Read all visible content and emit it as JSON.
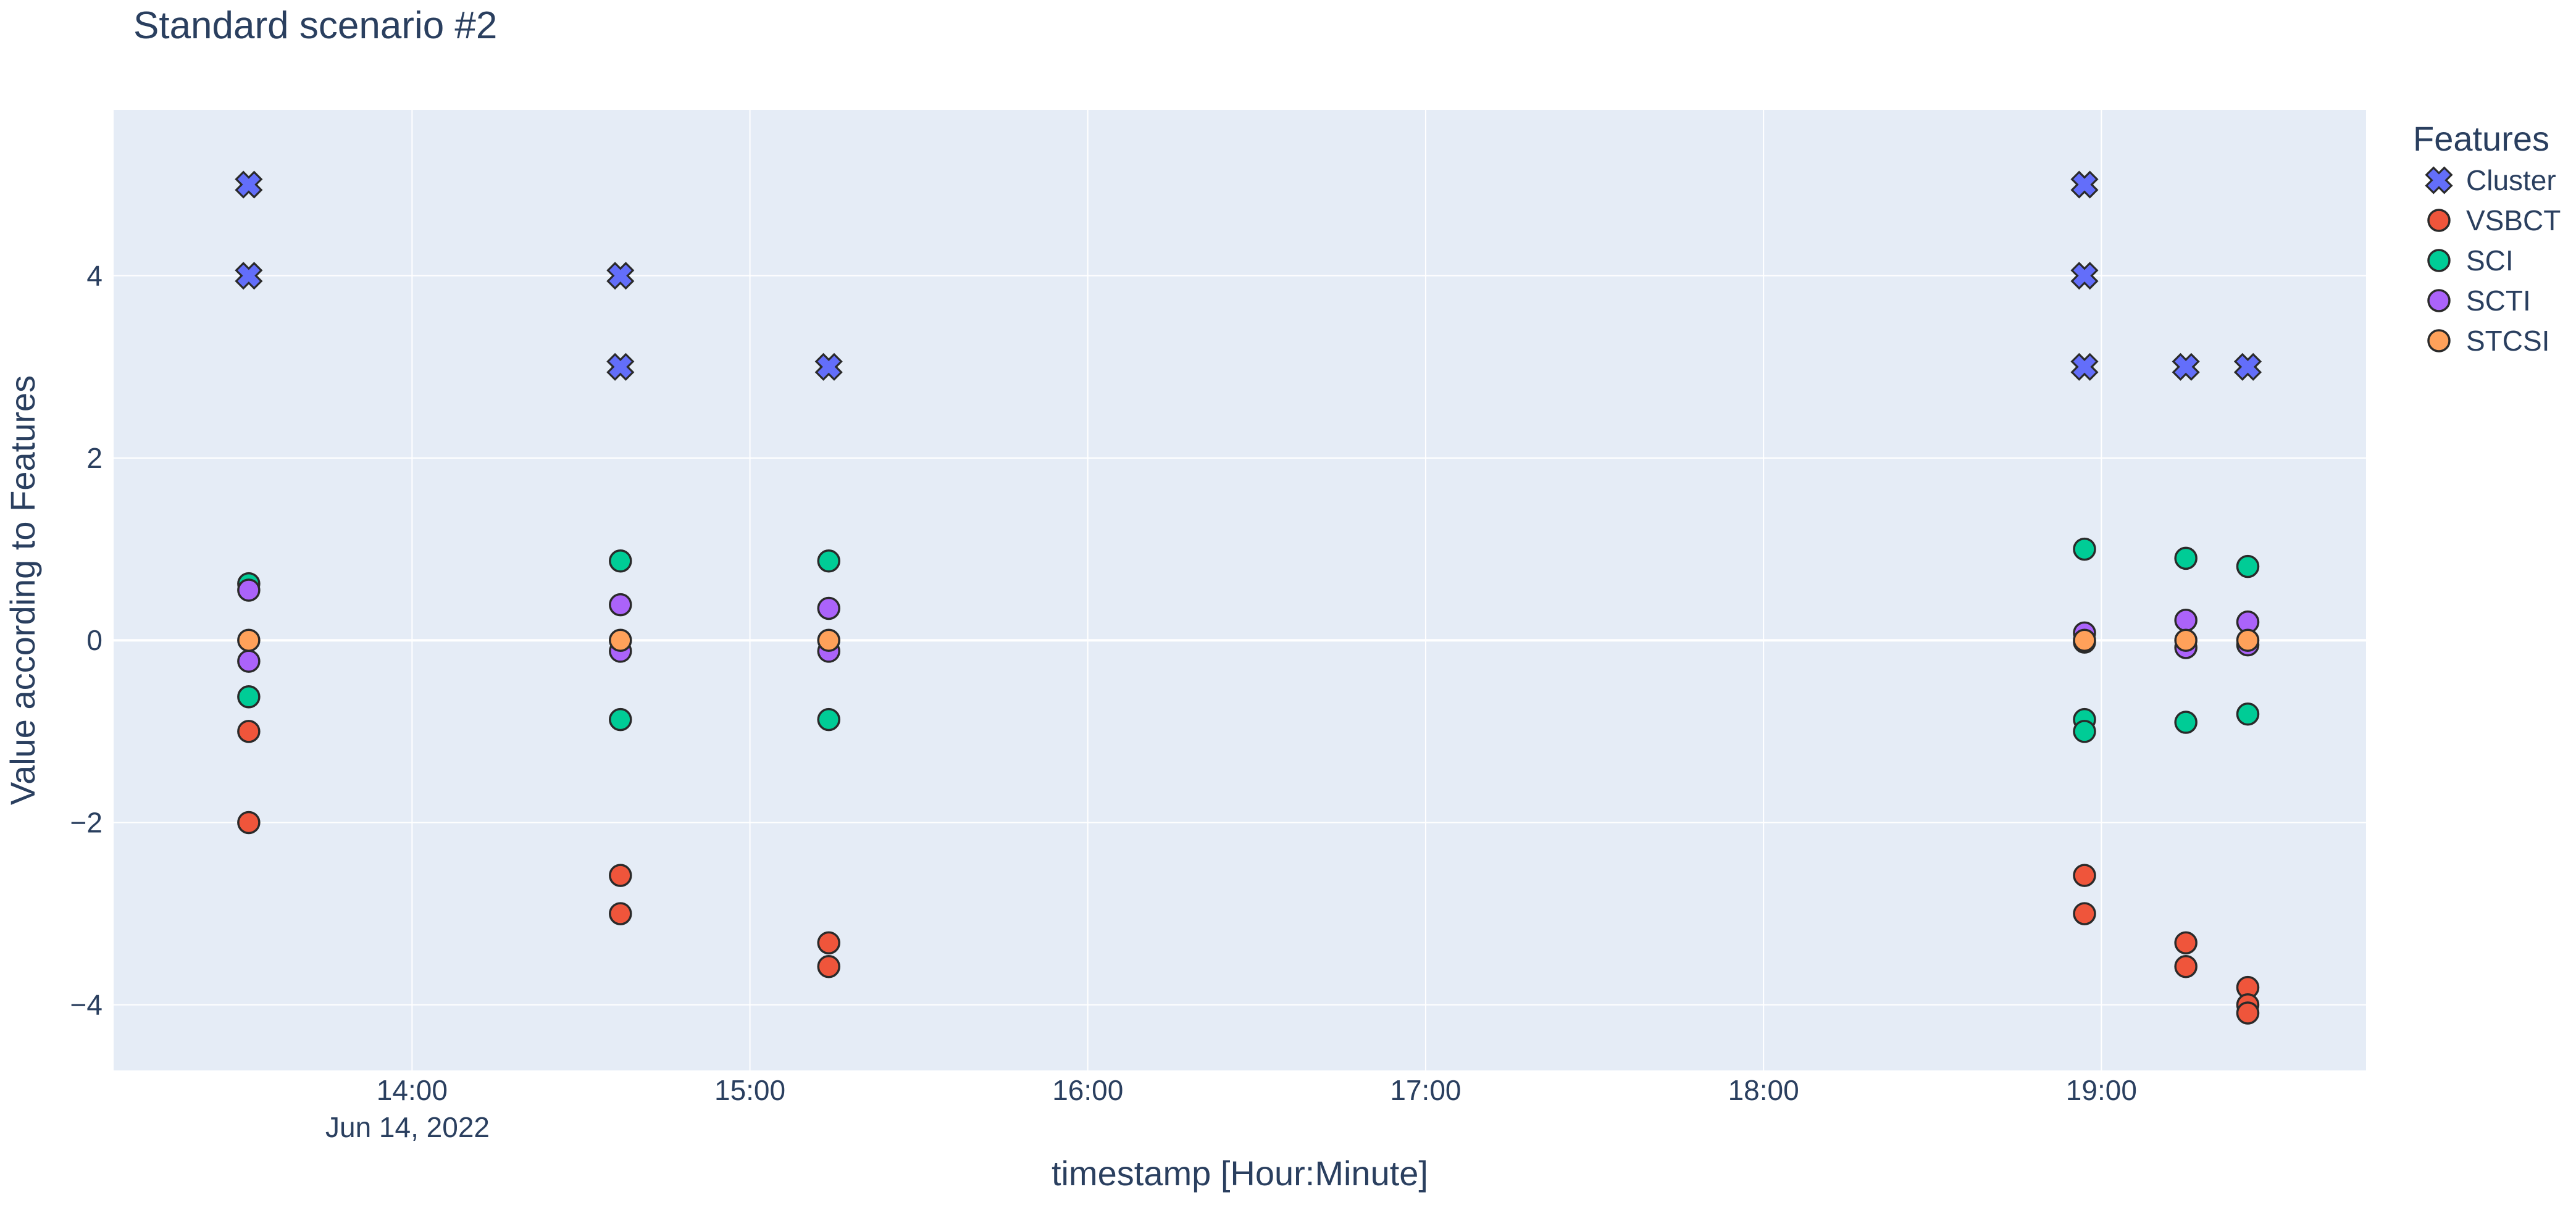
{
  "chart_data": {
    "type": "scatter",
    "title": "Standard scenario #2",
    "xlabel": "timestamp [Hour:Minute]",
    "ylabel": "Value according to Features",
    "x_axis_type": "time",
    "x_range": [
      "13:07",
      "19:47"
    ],
    "x_ticks": [
      "14:00",
      "15:00",
      "16:00",
      "17:00",
      "18:00",
      "19:00"
    ],
    "x_tick_date_label": "Jun 14, 2022",
    "y_range": [
      -4.72,
      5.82
    ],
    "y_ticks": [
      -4,
      -2,
      0,
      2,
      4
    ],
    "y_tick_labels": [
      "−4",
      "−2",
      "0",
      "2",
      "4"
    ],
    "grid": true,
    "legend_title": "Features",
    "legend_position": "top-right",
    "series": [
      {
        "name": "Cluster",
        "marker": "x",
        "color": "#636efa",
        "points": [
          {
            "x": "13:31",
            "y": 5
          },
          {
            "x": "13:31",
            "y": 4
          },
          {
            "x": "14:37",
            "y": 4
          },
          {
            "x": "14:37",
            "y": 3
          },
          {
            "x": "15:14",
            "y": 3
          },
          {
            "x": "18:57",
            "y": 5
          },
          {
            "x": "18:57",
            "y": 4
          },
          {
            "x": "18:57",
            "y": 3
          },
          {
            "x": "19:15",
            "y": 3
          },
          {
            "x": "19:26",
            "y": 3
          }
        ]
      },
      {
        "name": "VSBCT",
        "marker": "circle",
        "color": "#ef553b",
        "points": [
          {
            "x": "13:31",
            "y": -1
          },
          {
            "x": "13:31",
            "y": -2
          },
          {
            "x": "14:37",
            "y": -2.58
          },
          {
            "x": "14:37",
            "y": -3
          },
          {
            "x": "15:14",
            "y": -3.32
          },
          {
            "x": "15:14",
            "y": -3.58
          },
          {
            "x": "18:57",
            "y": -2.58
          },
          {
            "x": "18:57",
            "y": -3
          },
          {
            "x": "19:15",
            "y": -3.32
          },
          {
            "x": "19:15",
            "y": -3.58
          },
          {
            "x": "19:26",
            "y": -3.81
          },
          {
            "x": "19:26",
            "y": -4
          },
          {
            "x": "19:26",
            "y": -4.09
          }
        ]
      },
      {
        "name": "SCI",
        "marker": "circle",
        "color": "#00cc96",
        "points": [
          {
            "x": "13:31",
            "y": 0.62
          },
          {
            "x": "13:31",
            "y": -0.62
          },
          {
            "x": "14:37",
            "y": 0.87
          },
          {
            "x": "14:37",
            "y": -0.87
          },
          {
            "x": "15:14",
            "y": 0.87
          },
          {
            "x": "15:14",
            "y": -0.87
          },
          {
            "x": "18:57",
            "y": 1.0
          },
          {
            "x": "18:57",
            "y": -0.87
          },
          {
            "x": "18:57",
            "y": -1.0
          },
          {
            "x": "19:15",
            "y": 0.9
          },
          {
            "x": "19:15",
            "y": -0.9
          },
          {
            "x": "19:26",
            "y": 0.81
          },
          {
            "x": "19:26",
            "y": -0.81
          }
        ]
      },
      {
        "name": "SCTI",
        "marker": "circle",
        "color": "#ab63fa",
        "points": [
          {
            "x": "13:31",
            "y": 0.55
          },
          {
            "x": "13:31",
            "y": -0.23
          },
          {
            "x": "14:37",
            "y": 0.39
          },
          {
            "x": "14:37",
            "y": -0.12
          },
          {
            "x": "15:14",
            "y": 0.35
          },
          {
            "x": "15:14",
            "y": -0.12
          },
          {
            "x": "18:57",
            "y": 0.08
          },
          {
            "x": "18:57",
            "y": -0.02
          },
          {
            "x": "19:15",
            "y": 0.22
          },
          {
            "x": "19:15",
            "y": -0.08
          },
          {
            "x": "19:26",
            "y": 0.2
          },
          {
            "x": "19:26",
            "y": -0.05
          }
        ]
      },
      {
        "name": "STCSI",
        "marker": "circle",
        "color": "#ffa15a",
        "points": [
          {
            "x": "13:31",
            "y": 0
          },
          {
            "x": "14:37",
            "y": 0
          },
          {
            "x": "15:14",
            "y": 0
          },
          {
            "x": "18:57",
            "y": 0
          },
          {
            "x": "19:15",
            "y": 0
          },
          {
            "x": "19:26",
            "y": 0
          }
        ]
      }
    ]
  }
}
